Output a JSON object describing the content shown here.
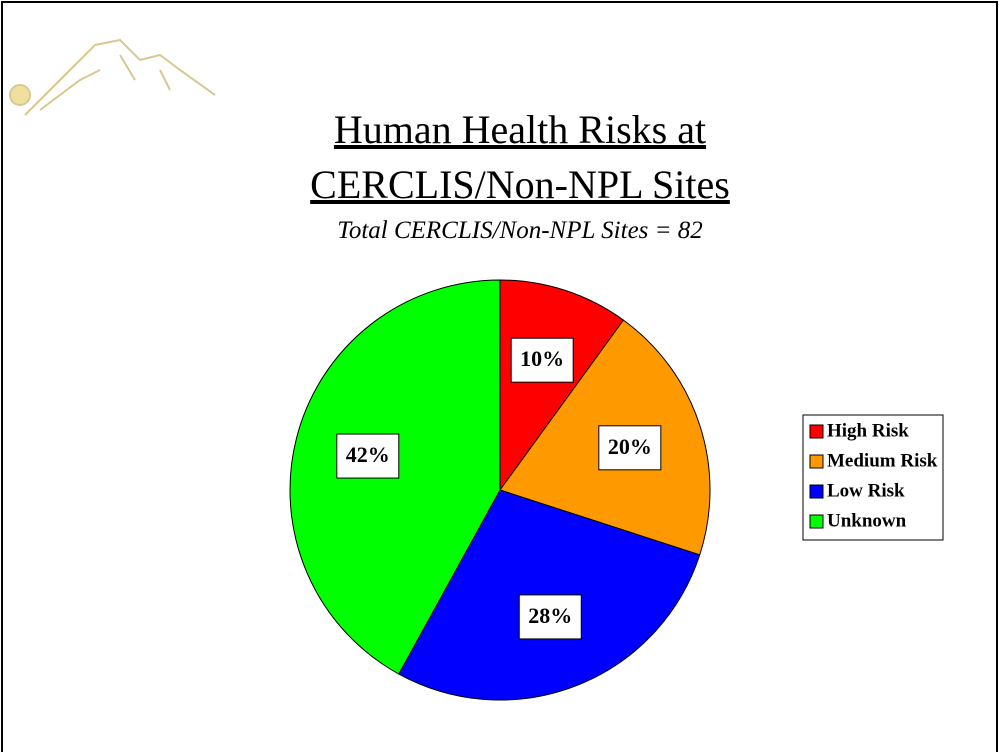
{
  "chart_data": {
    "type": "pie",
    "title": "Human Health Risks at CERCLIS/Non-NPL Sites",
    "subtitle": "Total CERCLIS/Non-NPL Sites = 82",
    "categories": [
      "High Risk",
      "Medium Risk",
      "Low Risk",
      "Unknown"
    ],
    "values": [
      10,
      20,
      28,
      42
    ],
    "value_labels": [
      "10%",
      "20%",
      "28%",
      "42%"
    ],
    "colors": [
      "#ff0000",
      "#ff9900",
      "#0000ff",
      "#00ff00"
    ],
    "legend": "right"
  }
}
